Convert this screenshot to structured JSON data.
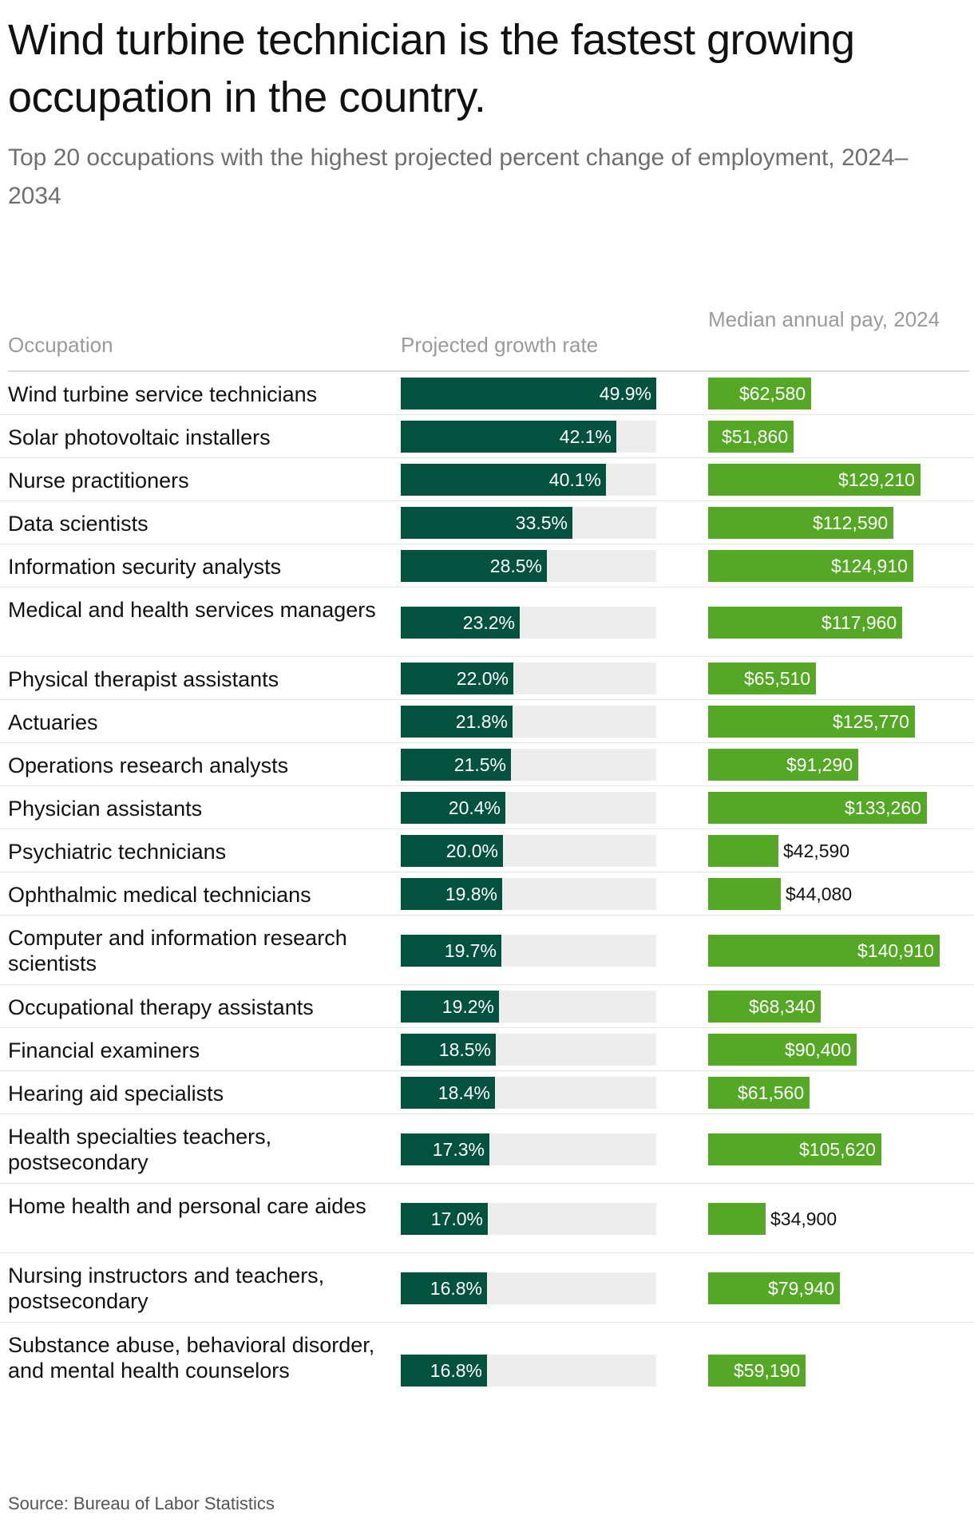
{
  "title": "Wind turbine technician is the fastest growing occupation in the country.",
  "subtitle": "Top 20 occupations with the highest projected percent change of employment, 2024–2034",
  "columns": {
    "occupation": "Occupation",
    "growth": "Projected growth rate",
    "pay": "Median annual pay, 2024"
  },
  "source": "Source: Bureau of Labor Statistics",
  "colors": {
    "growth_bar": "#02523f",
    "growth_track": "#ededed",
    "pay_bar": "#55a826",
    "header_text": "#9a9a9a"
  },
  "chart_data": {
    "type": "table",
    "title": "Wind turbine technician is the fastest growing occupation in the country.",
    "subtitle": "Top 20 occupations with the highest projected percent change of employment, 2024–2034",
    "growth_max": 49.9,
    "pay_max": 140910,
    "rows": [
      {
        "occupation": "Wind turbine service technicians",
        "growth": 49.9,
        "growth_label": "49.9%",
        "pay": 62580,
        "pay_label": "$62,580"
      },
      {
        "occupation": "Solar photovoltaic installers",
        "growth": 42.1,
        "growth_label": "42.1%",
        "pay": 51860,
        "pay_label": "$51,860"
      },
      {
        "occupation": "Nurse practitioners",
        "growth": 40.1,
        "growth_label": "40.1%",
        "pay": 129210,
        "pay_label": "$129,210"
      },
      {
        "occupation": "Data scientists",
        "growth": 33.5,
        "growth_label": "33.5%",
        "pay": 112590,
        "pay_label": "$112,590"
      },
      {
        "occupation": "Information security analysts",
        "growth": 28.5,
        "growth_label": "28.5%",
        "pay": 124910,
        "pay_label": "$124,910"
      },
      {
        "occupation": "Medical and health services managers",
        "growth": 23.2,
        "growth_label": "23.2%",
        "pay": 117960,
        "pay_label": "$117,960"
      },
      {
        "occupation": "Physical therapist assistants",
        "growth": 22.0,
        "growth_label": "22.0%",
        "pay": 65510,
        "pay_label": "$65,510"
      },
      {
        "occupation": "Actuaries",
        "growth": 21.8,
        "growth_label": "21.8%",
        "pay": 125770,
        "pay_label": "$125,770"
      },
      {
        "occupation": "Operations research analysts",
        "growth": 21.5,
        "growth_label": "21.5%",
        "pay": 91290,
        "pay_label": "$91,290"
      },
      {
        "occupation": "Physician assistants",
        "growth": 20.4,
        "growth_label": "20.4%",
        "pay": 133260,
        "pay_label": "$133,260"
      },
      {
        "occupation": "Psychiatric technicians",
        "growth": 20.0,
        "growth_label": "20.0%",
        "pay": 42590,
        "pay_label": "$42,590"
      },
      {
        "occupation": "Ophthalmic medical technicians",
        "growth": 19.8,
        "growth_label": "19.8%",
        "pay": 44080,
        "pay_label": "$44,080"
      },
      {
        "occupation": "Computer and information research scientists",
        "growth": 19.7,
        "growth_label": "19.7%",
        "pay": 140910,
        "pay_label": "$140,910"
      },
      {
        "occupation": "Occupational therapy assistants",
        "growth": 19.2,
        "growth_label": "19.2%",
        "pay": 68340,
        "pay_label": "$68,340"
      },
      {
        "occupation": "Financial examiners",
        "growth": 18.5,
        "growth_label": "18.5%",
        "pay": 90400,
        "pay_label": "$90,400"
      },
      {
        "occupation": "Hearing aid specialists",
        "growth": 18.4,
        "growth_label": "18.4%",
        "pay": 61560,
        "pay_label": "$61,560"
      },
      {
        "occupation": "Health specialties teachers, postsecondary",
        "growth": 17.3,
        "growth_label": "17.3%",
        "pay": 105620,
        "pay_label": "$105,620"
      },
      {
        "occupation": "Home health and personal care aides",
        "growth": 17.0,
        "growth_label": "17.0%",
        "pay": 34900,
        "pay_label": "$34,900"
      },
      {
        "occupation": "Nursing instructors and teachers, postsecondary",
        "growth": 16.8,
        "growth_label": "16.8%",
        "pay": 79940,
        "pay_label": "$79,940"
      },
      {
        "occupation": "Substance abuse, behavioral disorder, and mental health counselors",
        "growth": 16.8,
        "growth_label": "16.8%",
        "pay": 59190,
        "pay_label": "$59,190"
      }
    ]
  }
}
